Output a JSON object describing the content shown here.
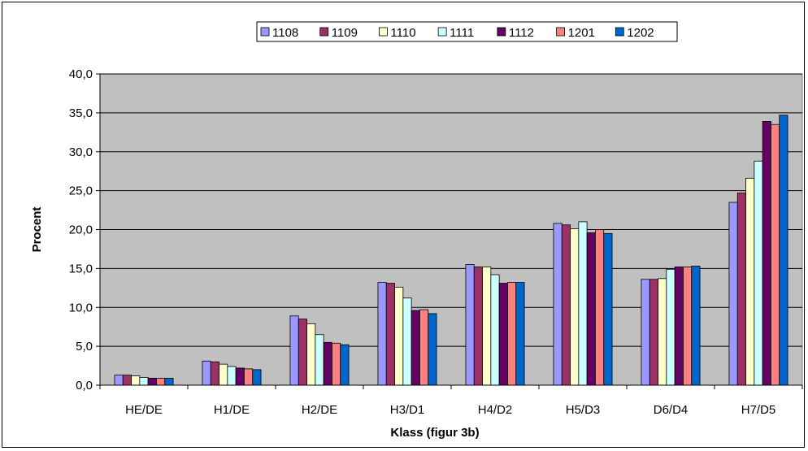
{
  "chart_data": {
    "type": "bar",
    "title": "",
    "xlabel": "Klass (figur 3b)",
    "ylabel": "Procent",
    "ylim": [
      0,
      40
    ],
    "yticks": [
      "0,0",
      "5,0",
      "10,0",
      "15,0",
      "20,0",
      "25,0",
      "30,0",
      "35,0",
      "40,0"
    ],
    "grid": true,
    "legend_position": "top",
    "plot_background": "#c0c0c0",
    "categories": [
      "HE/DE",
      "H1/DE",
      "H2/DE",
      "H3/D1",
      "H4/D2",
      "H5/D3",
      "D6/D4",
      "H7/D5"
    ],
    "series": [
      {
        "name": "1108",
        "color": "#9999ff",
        "values": [
          1.3,
          3.1,
          8.9,
          13.2,
          15.5,
          20.8,
          13.6,
          23.5
        ]
      },
      {
        "name": "1109",
        "color": "#993366",
        "values": [
          1.3,
          3.0,
          8.5,
          13.1,
          15.2,
          20.6,
          13.6,
          24.7
        ]
      },
      {
        "name": "1110",
        "color": "#ffffcc",
        "values": [
          1.2,
          2.7,
          7.9,
          12.6,
          15.2,
          20.1,
          13.7,
          26.6
        ]
      },
      {
        "name": "1111",
        "color": "#ccffff",
        "values": [
          1.0,
          2.4,
          6.5,
          11.2,
          14.2,
          21.0,
          14.9,
          28.8
        ]
      },
      {
        "name": "1112",
        "color": "#660066",
        "values": [
          0.9,
          2.2,
          5.5,
          9.6,
          13.1,
          19.6,
          15.2,
          33.9
        ]
      },
      {
        "name": "1201",
        "color": "#ff8080",
        "values": [
          0.9,
          2.1,
          5.4,
          9.7,
          13.2,
          20.0,
          15.2,
          33.5
        ]
      },
      {
        "name": "1202",
        "color": "#0066cc",
        "values": [
          0.9,
          2.0,
          5.2,
          9.2,
          13.2,
          19.5,
          15.3,
          34.7
        ]
      }
    ]
  }
}
